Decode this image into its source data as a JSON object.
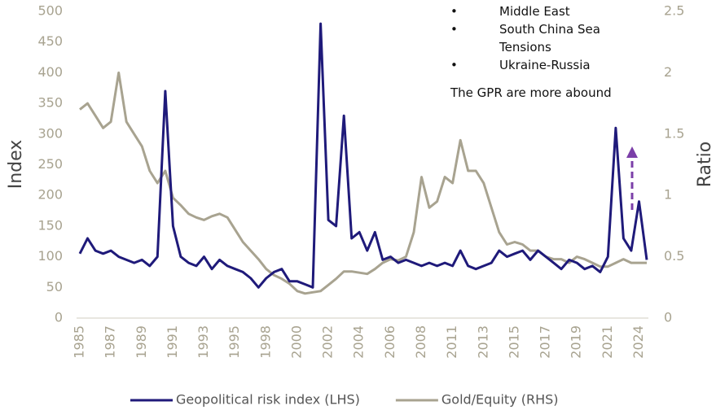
{
  "chart_data": {
    "type": "line",
    "y_label": "Index",
    "y2_label": "Ratio",
    "annotations": {
      "bullets": [
        "Middle East",
        "South China Sea Tensions",
        "Ukraine-Russia"
      ],
      "note": "The GPR are more abound"
    },
    "categories": [
      "1985",
      null,
      null,
      null,
      "1987",
      null,
      null,
      null,
      "1989",
      null,
      null,
      null,
      "1991",
      null,
      null,
      null,
      "1993",
      null,
      null,
      null,
      "1995",
      null,
      null,
      null,
      "1998",
      null,
      null,
      null,
      "2000",
      null,
      null,
      null,
      "2002",
      null,
      null,
      null,
      "2004",
      null,
      null,
      null,
      "2006",
      null,
      null,
      null,
      "2008",
      null,
      null,
      null,
      "2011",
      null,
      null,
      null,
      "2013",
      null,
      null,
      null,
      "2015",
      null,
      null,
      null,
      "2017",
      null,
      null,
      null,
      "2019",
      null,
      null,
      null,
      "2021",
      null,
      null,
      null,
      "2024",
      null
    ],
    "series": [
      {
        "name": "Geopolitical risk index (LHS)",
        "color": "#1f1a7a",
        "axis": "y",
        "values": [
          105,
          130,
          110,
          105,
          110,
          100,
          95,
          90,
          95,
          85,
          100,
          370,
          150,
          100,
          90,
          85,
          100,
          80,
          95,
          85,
          80,
          75,
          65,
          50,
          65,
          75,
          80,
          60,
          60,
          55,
          50,
          480,
          160,
          150,
          330,
          130,
          140,
          110,
          140,
          95,
          100,
          90,
          95,
          90,
          85,
          90,
          85,
          90,
          85,
          110,
          85,
          80,
          85,
          90,
          110,
          100,
          105,
          110,
          95,
          110,
          100,
          90,
          80,
          95,
          90,
          80,
          85,
          75,
          100,
          310,
          130,
          110,
          190,
          95
        ]
      },
      {
        "name": "Gold/Equity (RHS)",
        "color": "#a8a390",
        "axis": "y2",
        "values": [
          1.7,
          1.75,
          1.65,
          1.55,
          1.6,
          2.0,
          1.6,
          1.5,
          1.4,
          1.2,
          1.1,
          1.2,
          0.98,
          0.92,
          0.85,
          0.82,
          0.8,
          0.83,
          0.85,
          0.82,
          0.72,
          0.62,
          0.55,
          0.48,
          0.4,
          0.35,
          0.32,
          0.28,
          0.22,
          0.2,
          0.21,
          0.22,
          0.27,
          0.32,
          0.38,
          0.38,
          0.37,
          0.36,
          0.4,
          0.45,
          0.48,
          0.47,
          0.5,
          0.7,
          1.15,
          0.9,
          0.95,
          1.15,
          1.1,
          1.45,
          1.2,
          1.2,
          1.1,
          0.9,
          0.7,
          0.6,
          0.62,
          0.6,
          0.55,
          0.55,
          0.5,
          0.48,
          0.48,
          0.45,
          0.5,
          0.48,
          0.45,
          0.42,
          0.42,
          0.45,
          0.48,
          0.45,
          0.45,
          0.45
        ]
      }
    ],
    "ylim": [
      0,
      500
    ],
    "yticks": [
      0,
      50,
      100,
      150,
      200,
      250,
      300,
      350,
      400,
      450,
      500
    ],
    "y2lim": [
      0,
      2.5
    ],
    "y2ticks": [
      0,
      0.5,
      1,
      1.5,
      2,
      2.5
    ],
    "grid": false,
    "legend": "bottom"
  }
}
